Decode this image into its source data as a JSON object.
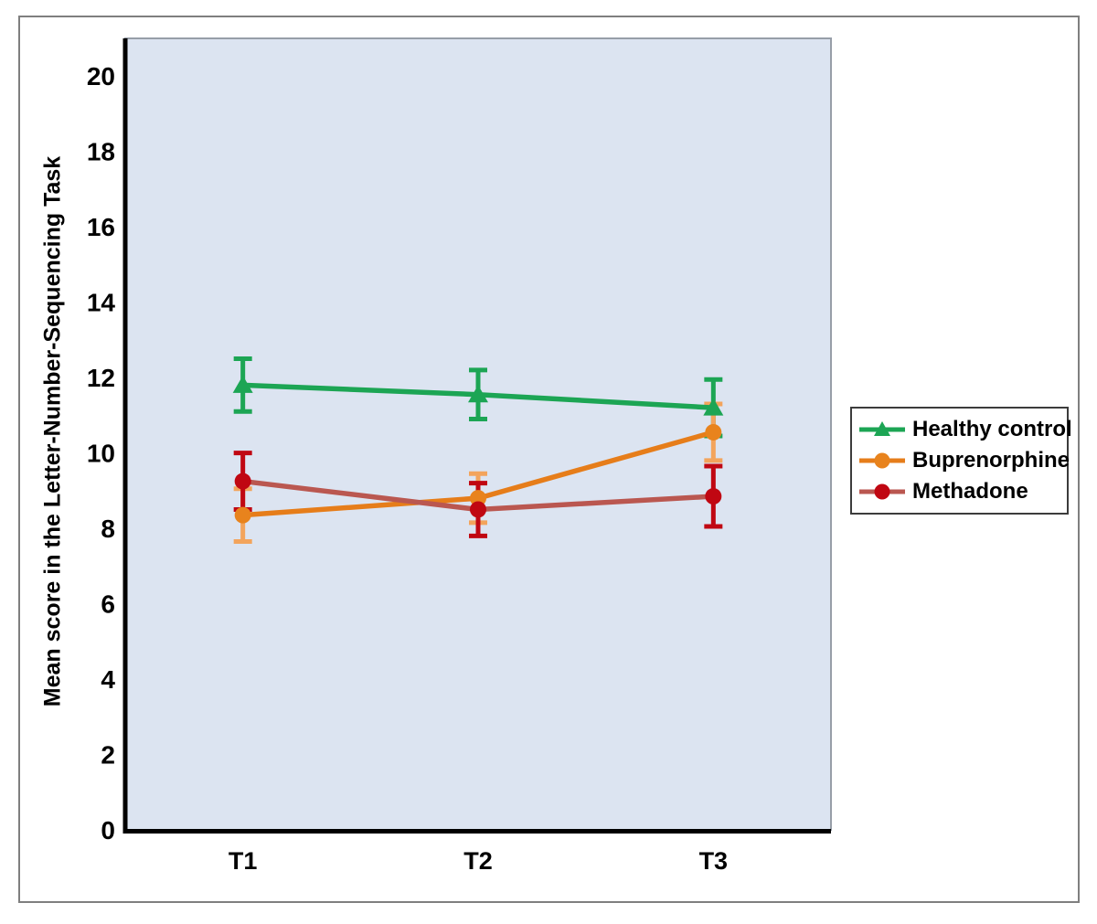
{
  "chart_data": {
    "type": "line",
    "title": "",
    "categories": [
      "T1",
      "T2",
      "T3"
    ],
    "xlabel": "",
    "ylabel": "Mean score in the Letter-Number-Sequencing Task",
    "ylim": [
      0,
      21
    ],
    "yticks": [
      0,
      2,
      4,
      6,
      8,
      10,
      12,
      14,
      16,
      18,
      20
    ],
    "grid": false,
    "legend_position": "right",
    "error_bars": true,
    "series": [
      {
        "name": "Healthy control",
        "marker": "triangle",
        "line_color": "#1ca554",
        "marker_color": "#1ca554",
        "error_color": "#1ca554",
        "values": [
          11.8,
          11.55,
          11.2
        ],
        "errors": [
          0.7,
          0.65,
          0.75
        ]
      },
      {
        "name": "Buprenorphine",
        "marker": "circle",
        "line_color": "#e67d1a",
        "marker_color": "#e8831d",
        "error_color": "#f3a45c",
        "values": [
          8.35,
          8.8,
          10.55
        ],
        "errors": [
          0.7,
          0.65,
          0.75
        ]
      },
      {
        "name": "Methadone",
        "marker": "circle",
        "line_color": "#ba5750",
        "marker_color": "#c00712",
        "error_color": "#c00712",
        "values": [
          9.25,
          8.5,
          8.85
        ],
        "errors": [
          0.75,
          0.7,
          0.8
        ]
      }
    ],
    "colors": {
      "plot_bg": "#dce4f1",
      "axis": "#000000",
      "plot_border": "#979ea8",
      "outer_border": "#7f7f7f",
      "legend_border": "#3c3c3c",
      "text": "#000000"
    }
  }
}
